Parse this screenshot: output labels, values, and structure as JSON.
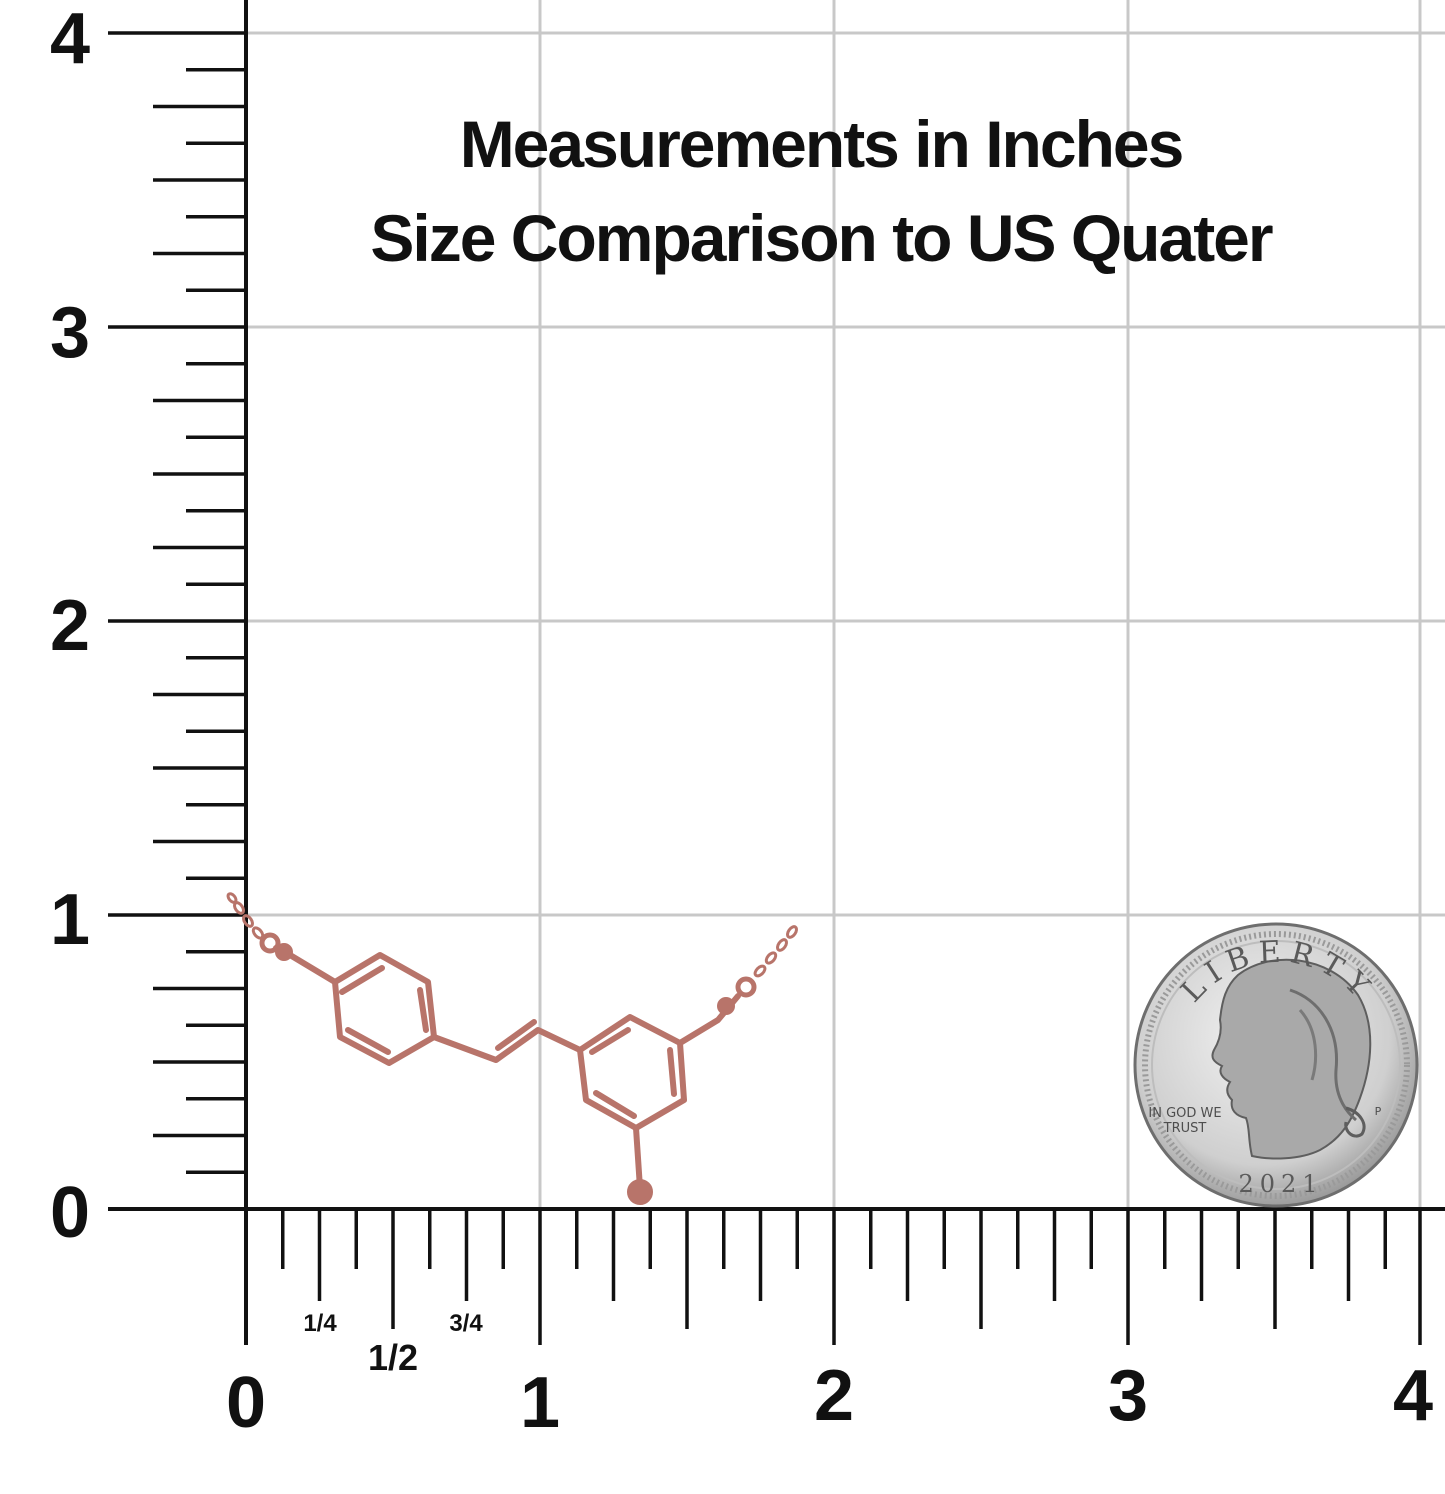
{
  "title_line1": "Measurements in Inches",
  "title_line2": "Size Comparison to US Quater",
  "y_axis": {
    "labels": [
      "0",
      "1",
      "2",
      "3",
      "4"
    ]
  },
  "x_axis": {
    "labels": [
      "0",
      "1",
      "2",
      "3",
      "4"
    ],
    "fractions": {
      "quarter": "1/4",
      "half": "1/2",
      "three_quarter": "3/4"
    }
  },
  "coin": {
    "legend_top": "LIBERTY",
    "motto_line1": "IN GOD WE",
    "motto_line2": "TRUST",
    "year": "2021",
    "mint_mark": "P"
  },
  "colors": {
    "grid": "#c8c8c8",
    "ruler": "#111111",
    "pendant": "#b8746a",
    "pendant_dark": "#8a4f47",
    "coin_light": "#e6e6e6",
    "coin_dark": "#8c8c8c"
  },
  "icons": {
    "pendant": "molecule-necklace-icon",
    "coin": "us-quarter-coin-icon"
  }
}
